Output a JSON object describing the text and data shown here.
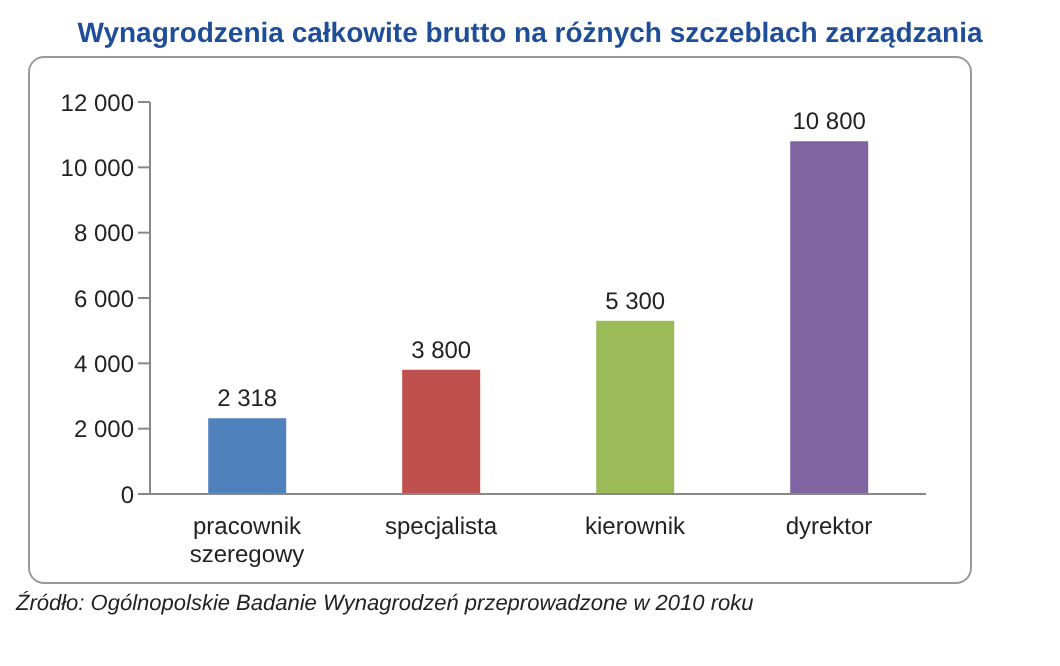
{
  "chart_data": {
    "type": "bar",
    "title": "Wynagrodzenia całkowite brutto na różnych szczeblach zarządzania",
    "categories": [
      "pracownik szeregowy",
      "specjalista",
      "kierownik",
      "dyrektor"
    ],
    "values": [
      2318,
      3800,
      5300,
      10800
    ],
    "colors": [
      "#4f81bd",
      "#c0504d",
      "#9bbb59",
      "#8064a2"
    ],
    "value_labels": [
      "2 318",
      "3 800",
      "5 300",
      "10 800"
    ],
    "ylim": [
      0,
      12000
    ],
    "yticks": [
      {
        "value": 0,
        "label": "0"
      },
      {
        "value": 2000,
        "label": "2 000"
      },
      {
        "value": 4000,
        "label": "4 000"
      },
      {
        "value": 6000,
        "label": "6 000"
      },
      {
        "value": 8000,
        "label": "8 000"
      },
      {
        "value": 10000,
        "label": "10 000"
      },
      {
        "value": 12000,
        "label": "12 000"
      }
    ],
    "grid": false,
    "annotations": [
      "Źródło: Ogólnopolskie Badanie Wynagrodzeń przeprowadzone w 2010 roku"
    ]
  }
}
